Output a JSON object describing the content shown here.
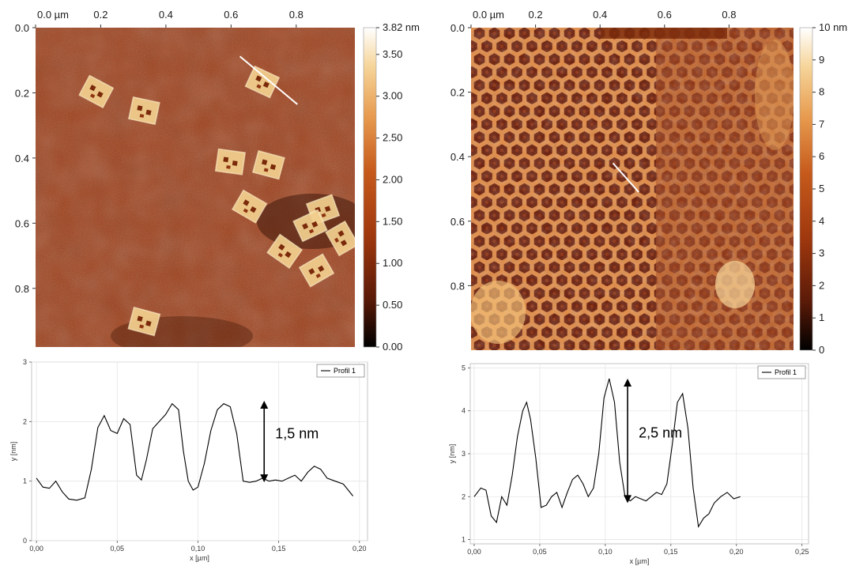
{
  "chart_data": [
    {
      "type": "heatmap",
      "x_ticks": [
        "0.0 µm",
        "0.2",
        "0.4",
        "0.6",
        "0.8"
      ],
      "y_ticks": [
        "0.0",
        "0.2",
        "0.4",
        "0.6",
        "0.8"
      ],
      "xlim": [
        0,
        0.98
      ],
      "ylim": [
        0,
        0.98
      ],
      "colorbar_ticks": [
        "3.82 nm",
        "3.50",
        "3.00",
        "2.50",
        "2.00",
        "1.50",
        "1.00",
        "0.50",
        "0.00"
      ],
      "colorbar_range": [
        0,
        3.82
      ],
      "colormap": [
        "#000000",
        "#5a1a08",
        "#a0380e",
        "#c65a1c",
        "#e79a4e",
        "#f6d59a",
        "#ffffff"
      ],
      "background_color": "#9c3a12",
      "rectangles": [
        {
          "cx": 0.19,
          "cy": 0.2,
          "angle": 28
        },
        {
          "cx": 0.34,
          "cy": 0.26,
          "angle": 12
        },
        {
          "cx": 0.71,
          "cy": 0.17,
          "angle": 25
        },
        {
          "cx": 0.61,
          "cy": 0.42,
          "angle": 8
        },
        {
          "cx": 0.73,
          "cy": 0.43,
          "angle": 15
        },
        {
          "cx": 0.67,
          "cy": 0.56,
          "angle": 30
        },
        {
          "cx": 0.9,
          "cy": 0.57,
          "angle": -20
        },
        {
          "cx": 0.86,
          "cy": 0.62,
          "angle": -25
        },
        {
          "cx": 0.96,
          "cy": 0.66,
          "angle": 60
        },
        {
          "cx": 0.78,
          "cy": 0.7,
          "angle": 35
        },
        {
          "cx": 0.88,
          "cy": 0.76,
          "angle": -30
        },
        {
          "cx": 0.34,
          "cy": 0.92,
          "angle": 15
        }
      ],
      "profile_line": {
        "x1": 0.64,
        "y1": 0.09,
        "x2": 0.82,
        "y2": 0.24
      }
    },
    {
      "type": "heatmap",
      "x_ticks": [
        "0.0 µm",
        "0.2",
        "0.4",
        "0.6",
        "0.8"
      ],
      "y_ticks": [
        "0.0",
        "0.2",
        "0.4",
        "0.6",
        "0.8"
      ],
      "xlim": [
        0,
        1.0
      ],
      "ylim": [
        0,
        1.0
      ],
      "colorbar_ticks": [
        "10 nm",
        "9",
        "8",
        "7",
        "6",
        "5",
        "4",
        "3",
        "2",
        "1",
        "0"
      ],
      "colorbar_range": [
        0,
        10
      ],
      "colormap": [
        "#000000",
        "#5a1a08",
        "#a0380e",
        "#c65a1c",
        "#e79a4e",
        "#f6d59a",
        "#ffffff"
      ],
      "background_color": "#b34a16",
      "pattern": "hexagonal",
      "profile_line": {
        "x1": 0.44,
        "y1": 0.42,
        "x2": 0.52,
        "y2": 0.51
      }
    },
    {
      "type": "line",
      "xlabel": "x [µm]",
      "ylabel": "y [nm]",
      "xlim": [
        -0.003,
        0.205
      ],
      "ylim": [
        0,
        3
      ],
      "x_ticks": [
        "0,00",
        "0,05",
        "0,10",
        "0,15",
        "0,20"
      ],
      "x_tick_values": [
        0,
        0.05,
        0.1,
        0.15,
        0.2
      ],
      "y_ticks": [
        "0",
        "1",
        "2",
        "3"
      ],
      "y_tick_values": [
        0,
        1,
        2,
        3
      ],
      "grid": true,
      "legend": {
        "entries": [
          "Profil 1"
        ],
        "position": "top-right"
      },
      "series": [
        {
          "name": "Profil 1",
          "x": [
            0,
            0.004,
            0.008,
            0.012,
            0.016,
            0.02,
            0.025,
            0.03,
            0.034,
            0.038,
            0.042,
            0.046,
            0.05,
            0.054,
            0.058,
            0.062,
            0.065,
            0.068,
            0.072,
            0.076,
            0.08,
            0.084,
            0.088,
            0.091,
            0.094,
            0.097,
            0.1,
            0.104,
            0.108,
            0.112,
            0.116,
            0.12,
            0.124,
            0.128,
            0.132,
            0.136,
            0.14,
            0.144,
            0.148,
            0.152,
            0.156,
            0.16,
            0.164,
            0.168,
            0.172,
            0.176,
            0.18,
            0.185,
            0.19,
            0.196
          ],
          "values": [
            1.05,
            0.9,
            0.88,
            1.0,
            0.82,
            0.7,
            0.68,
            0.72,
            1.2,
            1.9,
            2.1,
            1.85,
            1.8,
            2.05,
            1.95,
            1.1,
            1.02,
            1.35,
            1.88,
            2.0,
            2.12,
            2.3,
            2.2,
            1.5,
            1.0,
            0.85,
            0.9,
            1.3,
            1.85,
            2.2,
            2.3,
            2.25,
            1.8,
            1.0,
            0.98,
            1.0,
            1.05,
            1.0,
            1.02,
            1.0,
            1.05,
            1.1,
            1.0,
            1.15,
            1.25,
            1.2,
            1.05,
            1.0,
            0.95,
            0.75
          ]
        }
      ],
      "annotation": {
        "label": "1,5 nm",
        "x": 0.141,
        "y_from": 0.98,
        "y_to": 2.35
      }
    },
    {
      "type": "line",
      "xlabel": "x [µm]",
      "ylabel": "y [nm]",
      "xlim": [
        -0.003,
        0.255
      ],
      "ylim": [
        0.9,
        5.1
      ],
      "x_ticks": [
        "0,00",
        "0,05",
        "0,10",
        "0,15",
        "0,20",
        "0,25"
      ],
      "x_tick_values": [
        0,
        0.05,
        0.1,
        0.15,
        0.2,
        0.25
      ],
      "y_ticks": [
        "1",
        "2",
        "3",
        "4",
        "5"
      ],
      "y_tick_values": [
        1,
        2,
        3,
        4,
        5
      ],
      "grid": true,
      "legend": {
        "entries": [
          "Profil 1"
        ],
        "position": "top-right"
      },
      "series": [
        {
          "name": "Profil 1",
          "x": [
            0,
            0.005,
            0.009,
            0.013,
            0.017,
            0.021,
            0.025,
            0.029,
            0.033,
            0.037,
            0.04,
            0.043,
            0.047,
            0.051,
            0.055,
            0.059,
            0.063,
            0.067,
            0.071,
            0.075,
            0.079,
            0.083,
            0.087,
            0.091,
            0.095,
            0.099,
            0.103,
            0.107,
            0.111,
            0.115,
            0.119,
            0.123,
            0.127,
            0.131,
            0.135,
            0.139,
            0.143,
            0.147,
            0.151,
            0.155,
            0.159,
            0.163,
            0.167,
            0.171,
            0.175,
            0.179,
            0.183,
            0.188,
            0.193,
            0.198,
            0.203
          ],
          "values": [
            2.0,
            2.2,
            2.15,
            1.55,
            1.4,
            2.0,
            1.8,
            2.5,
            3.4,
            4.0,
            4.2,
            3.8,
            2.9,
            1.75,
            1.8,
            2.0,
            2.1,
            1.75,
            2.1,
            2.4,
            2.5,
            2.3,
            2.0,
            2.2,
            3.0,
            4.3,
            4.75,
            4.2,
            2.8,
            2.0,
            1.9,
            2.0,
            1.95,
            1.9,
            2.0,
            2.1,
            2.05,
            2.3,
            3.2,
            4.2,
            4.4,
            3.6,
            2.2,
            1.3,
            1.5,
            1.6,
            1.85,
            2.0,
            2.1,
            1.95,
            2.0
          ]
        }
      ],
      "annotation": {
        "label": "2,5 nm",
        "x": 0.117,
        "y_from": 1.85,
        "y_to": 4.75
      }
    }
  ]
}
